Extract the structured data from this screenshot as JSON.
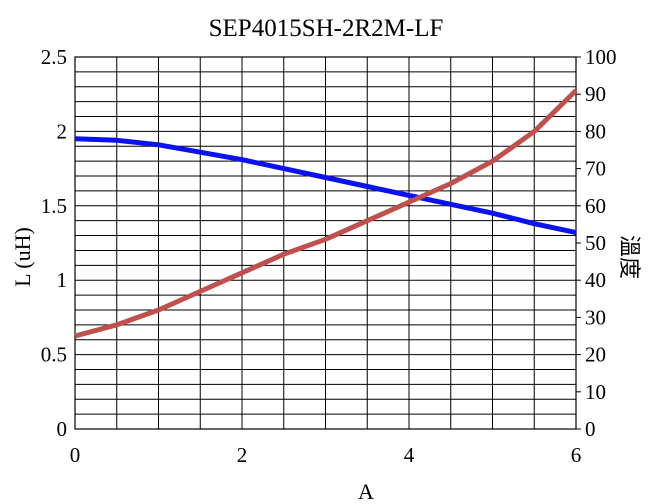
{
  "chart_data": {
    "type": "line",
    "title": "SEP4015SH-2R2M-LF",
    "xlabel": "A",
    "ylabel": "L (uH)",
    "y2label": "溫度",
    "xlim": [
      0,
      6
    ],
    "ylim": [
      0,
      2.5
    ],
    "y2lim": [
      0,
      100
    ],
    "x_ticks": [
      "0",
      "2",
      "4",
      "6"
    ],
    "y_ticks": [
      "0",
      "0.5",
      "1",
      "1.5",
      "2",
      "2.5"
    ],
    "y2_ticks": [
      "0",
      "10",
      "20",
      "30",
      "40",
      "50",
      "60",
      "70",
      "80",
      "90",
      "100"
    ],
    "grid": true,
    "legend": "none",
    "series": [
      {
        "axis": "left",
        "color": "#0a12f0",
        "x": [
          0,
          0.5,
          1,
          1.5,
          2,
          2.5,
          3,
          3.5,
          4,
          4.5,
          5,
          5.5,
          6
        ],
        "values": [
          1.95,
          1.94,
          1.91,
          1.86,
          1.81,
          1.75,
          1.69,
          1.63,
          1.57,
          1.51,
          1.45,
          1.38,
          1.32
        ]
      },
      {
        "axis": "right",
        "color": "#c0504d",
        "x": [
          0,
          0.5,
          1,
          1.5,
          2,
          2.5,
          3,
          3.5,
          4,
          4.5,
          5,
          5.5,
          6
        ],
        "values": [
          25,
          28,
          32,
          37,
          42,
          47,
          51,
          56,
          61,
          66,
          72,
          80,
          91
        ]
      }
    ]
  }
}
